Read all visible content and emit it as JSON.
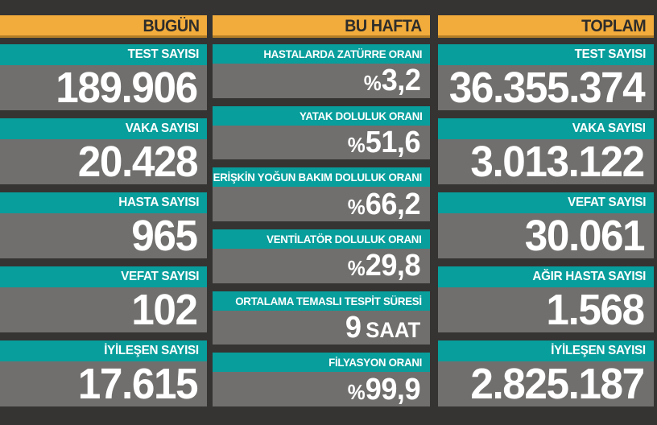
{
  "colors": {
    "background": "#353433",
    "header_bg": "#F2AC3C",
    "header_text": "#2E2D2B",
    "label_bg": "#089E9C",
    "value_bg": "#706F6D",
    "value_text": "#FFFFFF"
  },
  "chart_data": {
    "type": "table",
    "columns": [
      {
        "header": "BUGÜN",
        "rows": [
          {
            "label": "TEST SAYISI",
            "value": "189.906"
          },
          {
            "label": "VAKA SAYISI",
            "value": "20.428"
          },
          {
            "label": "HASTA SAYISI",
            "value": "965"
          },
          {
            "label": "VEFAT SAYISI",
            "value": "102"
          },
          {
            "label": "İYİLEŞEN SAYISI",
            "value": "17.615"
          }
        ]
      },
      {
        "header": "BU HAFTA",
        "rows": [
          {
            "label": "HASTALARDA ZATÜRRE ORANI",
            "prefix": "%",
            "value": "3,2"
          },
          {
            "label": "YATAK DOLULUK ORANI",
            "prefix": "%",
            "value": "51,6"
          },
          {
            "label": "ERİŞKİN YOĞUN BAKIM DOLULUK ORANI",
            "prefix": "%",
            "value": "66,2"
          },
          {
            "label": "VENTİLATÖR DOLULUK ORANI",
            "prefix": "%",
            "value": "29,8"
          },
          {
            "label": "ORTALAMA TEMASLI TESPİT SÜRESİ",
            "value": "9",
            "suffix": "SAAT"
          },
          {
            "label": "FİLYASYON ORANI",
            "prefix": "%",
            "value": "99,9"
          }
        ]
      },
      {
        "header": "TOPLAM",
        "rows": [
          {
            "label": "TEST SAYISI",
            "value": "36.355.374"
          },
          {
            "label": "VAKA SAYISI",
            "value": "3.013.122"
          },
          {
            "label": "VEFAT SAYISI",
            "value": "30.061"
          },
          {
            "label": "AĞIR HASTA SAYISI",
            "value": "1.568"
          },
          {
            "label": "İYİLEŞEN SAYISI",
            "value": "2.825.187"
          }
        ]
      }
    ]
  }
}
